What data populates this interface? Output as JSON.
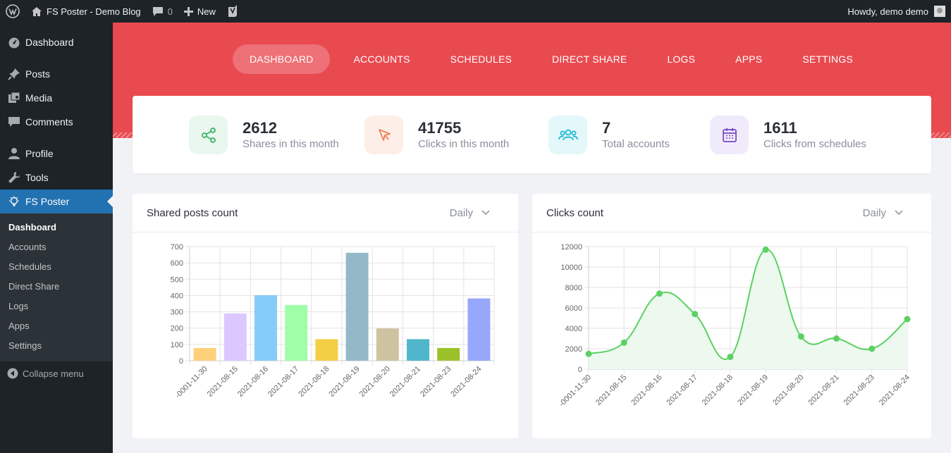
{
  "adminbar": {
    "site_name": "FS Poster - Demo Blog",
    "comments_count": "0",
    "new_label": "New",
    "howdy": "Howdy, demo demo"
  },
  "sidebar": {
    "items": [
      {
        "label": "Dashboard",
        "icon": "dashboard-icon"
      },
      {
        "label": "Posts",
        "icon": "pin-icon"
      },
      {
        "label": "Media",
        "icon": "media-icon"
      },
      {
        "label": "Comments",
        "icon": "comment-icon"
      },
      {
        "label": "Profile",
        "icon": "user-icon"
      },
      {
        "label": "Tools",
        "icon": "wrench-icon"
      },
      {
        "label": "FS Poster",
        "icon": "lightbulb-icon"
      }
    ],
    "submenu": [
      "Dashboard",
      "Accounts",
      "Schedules",
      "Direct Share",
      "Logs",
      "Apps",
      "Settings"
    ],
    "collapse_label": "Collapse menu"
  },
  "nav": {
    "tabs": [
      "DASHBOARD",
      "ACCOUNTS",
      "SCHEDULES",
      "DIRECT SHARE",
      "LOGS",
      "APPS",
      "SETTINGS"
    ]
  },
  "stats": [
    {
      "value": "2612",
      "label": "Shares in this month",
      "color": "#38b363",
      "bg": "#e9f7ee"
    },
    {
      "value": "41755",
      "label": "Clicks in this month",
      "color": "#f0805a",
      "bg": "#fdeee8"
    },
    {
      "value": "7",
      "label": "Total accounts",
      "color": "#19b6d1",
      "bg": "#e4f7fa"
    },
    {
      "value": "1611",
      "label": "Clicks from schedules",
      "color": "#7445c2",
      "bg": "#f0ebfa"
    }
  ],
  "cards": {
    "shared_title": "Shared posts count",
    "clicks_title": "Clicks count",
    "filter_label": "Daily"
  },
  "chart_data": [
    {
      "type": "bar",
      "title": "Shared posts count",
      "categories": [
        "-0001-11-30",
        "2021-08-15",
        "2021-08-16",
        "2021-08-17",
        "2021-08-18",
        "2021-08-19",
        "2021-08-20",
        "2021-08-21",
        "2021-08-23",
        "2021-08-24"
      ],
      "values": [
        78,
        290,
        402,
        342,
        132,
        662,
        198,
        132,
        78,
        382
      ],
      "colors": [
        "#ffd07a",
        "#dcc7ff",
        "#86ccf8",
        "#9effa8",
        "#f2cf44",
        "#93b9c8",
        "#cdc3a1",
        "#4fb6cc",
        "#9cc22a",
        "#97a8fa"
      ],
      "ylim": [
        0,
        700
      ],
      "yticks": [
        0,
        100,
        200,
        300,
        400,
        500,
        600,
        700
      ],
      "grid": true
    },
    {
      "type": "line",
      "title": "Clicks count",
      "categories": [
        "-0001-11-30",
        "2021-08-15",
        "2021-08-16",
        "2021-08-17",
        "2021-08-18",
        "2021-08-19",
        "2021-08-20",
        "2021-08-21",
        "2021-08-23",
        "2021-08-24"
      ],
      "values": [
        1500,
        2600,
        7400,
        5400,
        1200,
        11700,
        3200,
        3000,
        2000,
        4900
      ],
      "color": "#5bd163",
      "fill": "#edf8ee",
      "ylim": [
        0,
        12000
      ],
      "yticks": [
        0,
        2000,
        4000,
        6000,
        8000,
        10000,
        12000
      ],
      "grid": true
    }
  ]
}
